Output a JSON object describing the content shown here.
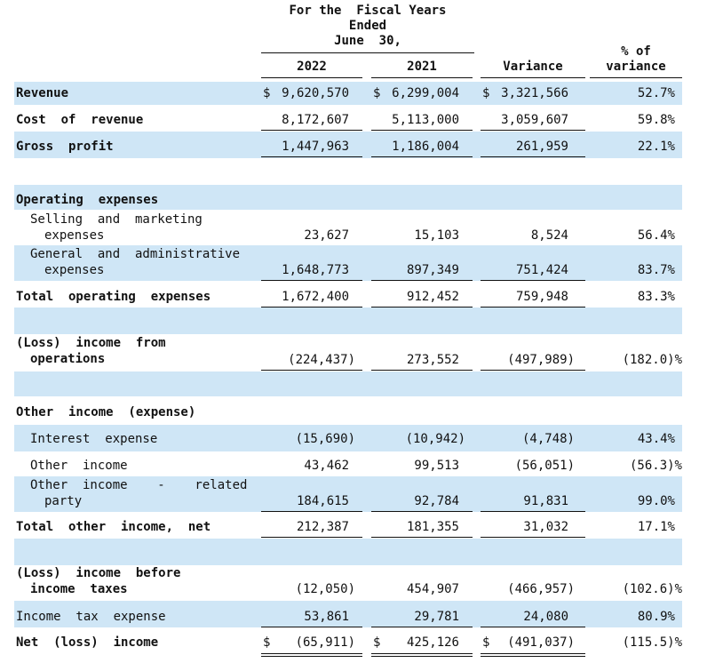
{
  "header": {
    "period_line1": "For the  Fiscal Years",
    "period_line2": "Ended",
    "period_line3": "June  30,",
    "col_2022": "2022",
    "col_2021": "2021",
    "col_variance": "Variance",
    "col_pct_line1": "% of",
    "col_pct_line2": "variance"
  },
  "rows": {
    "revenue": {
      "label": "Revenue",
      "cur_a": "$",
      "a": "9,620,570",
      "cur_b": "$",
      "b": "6,299,004",
      "cur_c": "$",
      "c": "3,321,566",
      "d": "52.7%"
    },
    "cost_of_revenue": {
      "label": "Cost  of  revenue",
      "a": "8,172,607",
      "b": "5,113,000",
      "c": "3,059,607",
      "d": "59.8%"
    },
    "gross_profit": {
      "label": "Gross  profit",
      "a": "1,447,963",
      "b": "1,186,004",
      "c": "261,959",
      "d": "22.1%"
    },
    "operating_expenses": {
      "label": "Operating  expenses"
    },
    "selling": {
      "label1": "Selling  and  marketing",
      "label2": "expenses",
      "a": "23,627",
      "b": "15,103",
      "c": "8,524",
      "d": "56.4%"
    },
    "general": {
      "label1": "General  and  administrative",
      "label2": "expenses",
      "a": "1,648,773",
      "b": "897,349",
      "c": "751,424",
      "d": "83.7%"
    },
    "total_opex": {
      "label": "Total  operating  expenses",
      "a": "1,672,400",
      "b": "912,452",
      "c": "759,948",
      "d": "83.3%"
    },
    "ops_income": {
      "label1": "(Loss)  income  from",
      "label2": "operations",
      "a": "(224,437)",
      "b": "273,552",
      "c": "(497,989)",
      "d": "(182.0)%"
    },
    "other_income_header": {
      "label": "Other  income  (expense)"
    },
    "interest": {
      "label": "Interest  expense",
      "a": "(15,690)",
      "b": "(10,942)",
      "c": "(4,748)",
      "d": "43.4%"
    },
    "other_income": {
      "label": "Other  income",
      "a": "43,462",
      "b": "99,513",
      "c": "(56,051)",
      "d": "(56.3)%"
    },
    "other_related": {
      "label1": "Other  income    -    related",
      "label2": "party",
      "a": "184,615",
      "b": "92,784",
      "c": "91,831",
      "d": "99.0%"
    },
    "total_other": {
      "label": "Total  other  income,  net",
      "a": "212,387",
      "b": "181,355",
      "c": "31,032",
      "d": "17.1%"
    },
    "pre_tax": {
      "label1": "(Loss)  income  before",
      "label2": "income  taxes",
      "a": "(12,050)",
      "b": "454,907",
      "c": "(466,957)",
      "d": "(102.6)%"
    },
    "tax": {
      "label": "Income  tax  expense",
      "a": "53,861",
      "b": "29,781",
      "c": "24,080",
      "d": "80.9%"
    },
    "net": {
      "label": "Net  (loss)  income",
      "cur_a": "$",
      "a": "(65,911)",
      "cur_b": "$",
      "b": "425,126",
      "cur_c": "$",
      "c": "(491,037)",
      "d": "(115.5)%"
    }
  }
}
